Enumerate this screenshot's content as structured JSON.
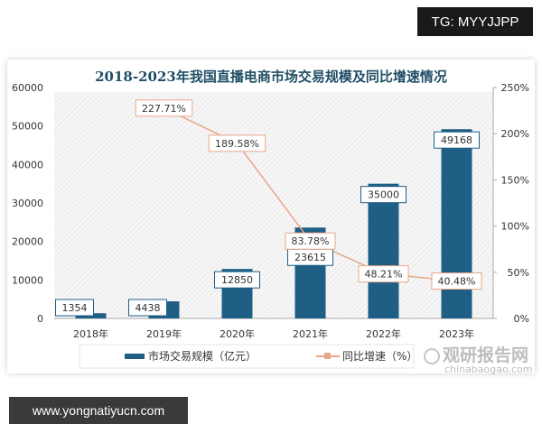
{
  "overlay": {
    "top_right": "TG: MYYJJPP",
    "bottom_left": "www.yongnatiyucn.com"
  },
  "watermark": {
    "name": "观研报告网",
    "domain": "chinabaogao.com"
  },
  "colors": {
    "bar": "#1f5f86",
    "line": "#e8a78a",
    "title": "#1f4e66",
    "label_border_bar": "#1f5f86",
    "label_border_line": "#e8a78a"
  },
  "chart_data": {
    "type": "bar",
    "title": "2018-2023年我国直播电商市场交易规模及同比增速情况",
    "categories": [
      "2018年",
      "2019年",
      "2020年",
      "2021年",
      "2022年",
      "2023年"
    ],
    "series": [
      {
        "name": "市场交易规模（亿元）",
        "type": "bar",
        "axis": "left",
        "values": [
          1354,
          4438,
          12850,
          23615,
          35000,
          49168
        ],
        "labels": [
          "1354",
          "4438",
          "12850",
          "23615",
          "35000",
          "49168"
        ]
      },
      {
        "name": "同比增速（%）",
        "type": "line",
        "axis": "right",
        "x": [
          "2019年",
          "2020年",
          "2021年",
          "2022年",
          "2023年"
        ],
        "values": [
          227.71,
          189.58,
          83.78,
          48.21,
          40.48
        ],
        "labels": [
          "227.71%",
          "189.58%",
          "83.78%",
          "48.21%",
          "40.48%"
        ]
      }
    ],
    "ylim_left": [
      0,
      60000
    ],
    "yticks_left": [
      "0",
      "10000",
      "20000",
      "30000",
      "40000",
      "50000",
      "60000"
    ],
    "ylim_right": [
      0,
      250
    ],
    "yticks_right": [
      "0%",
      "50%",
      "100%",
      "150%",
      "200%",
      "250%"
    ],
    "grid": false,
    "legend": "bottom"
  }
}
